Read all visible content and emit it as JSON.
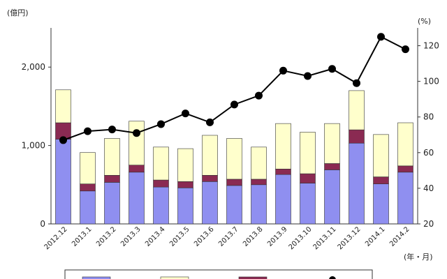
{
  "chart_data": {
    "type": "bar",
    "stacked": true,
    "categories": [
      "2012.12",
      "2013.1",
      "2013.2",
      "2013.3",
      "2013.4",
      "2013.5",
      "2013.6",
      "2013.7",
      "2013.8",
      "2013.9",
      "2013.10",
      "2013.11",
      "2013.12",
      "2014.1",
      "2014.2"
    ],
    "series": [
      {
        "values": [
          1080,
          420,
          530,
          660,
          470,
          460,
          540,
          490,
          500,
          630,
          520,
          690,
          1030,
          510,
          660
        ],
        "color": "#8f8ff0"
      },
      {
        "values": [
          210,
          90,
          90,
          90,
          90,
          80,
          80,
          80,
          70,
          70,
          120,
          80,
          170,
          90,
          80
        ],
        "color": "#8a2a52"
      },
      {
        "values": [
          420,
          400,
          470,
          560,
          420,
          420,
          510,
          520,
          410,
          580,
          530,
          510,
          500,
          540,
          550
        ],
        "color": "#ffffcc"
      }
    ],
    "line_series": {
      "values": [
        67,
        72,
        73,
        71,
        76,
        82,
        77,
        87,
        92,
        106,
        103,
        107,
        99,
        125,
        118
      ],
      "color": "#000000",
      "axis": "right"
    },
    "y_left": {
      "unit": "(億円)",
      "ticks": [
        "0",
        "1,000",
        "2,000"
      ],
      "range": [
        0,
        2500
      ]
    },
    "y_right": {
      "unit": "(%)",
      "ticks": [
        "20",
        "40",
        "60",
        "80",
        "100",
        "120"
      ],
      "range": [
        20,
        130
      ]
    },
    "x_unit": "(年・月)",
    "legend_position": "bottom"
  }
}
